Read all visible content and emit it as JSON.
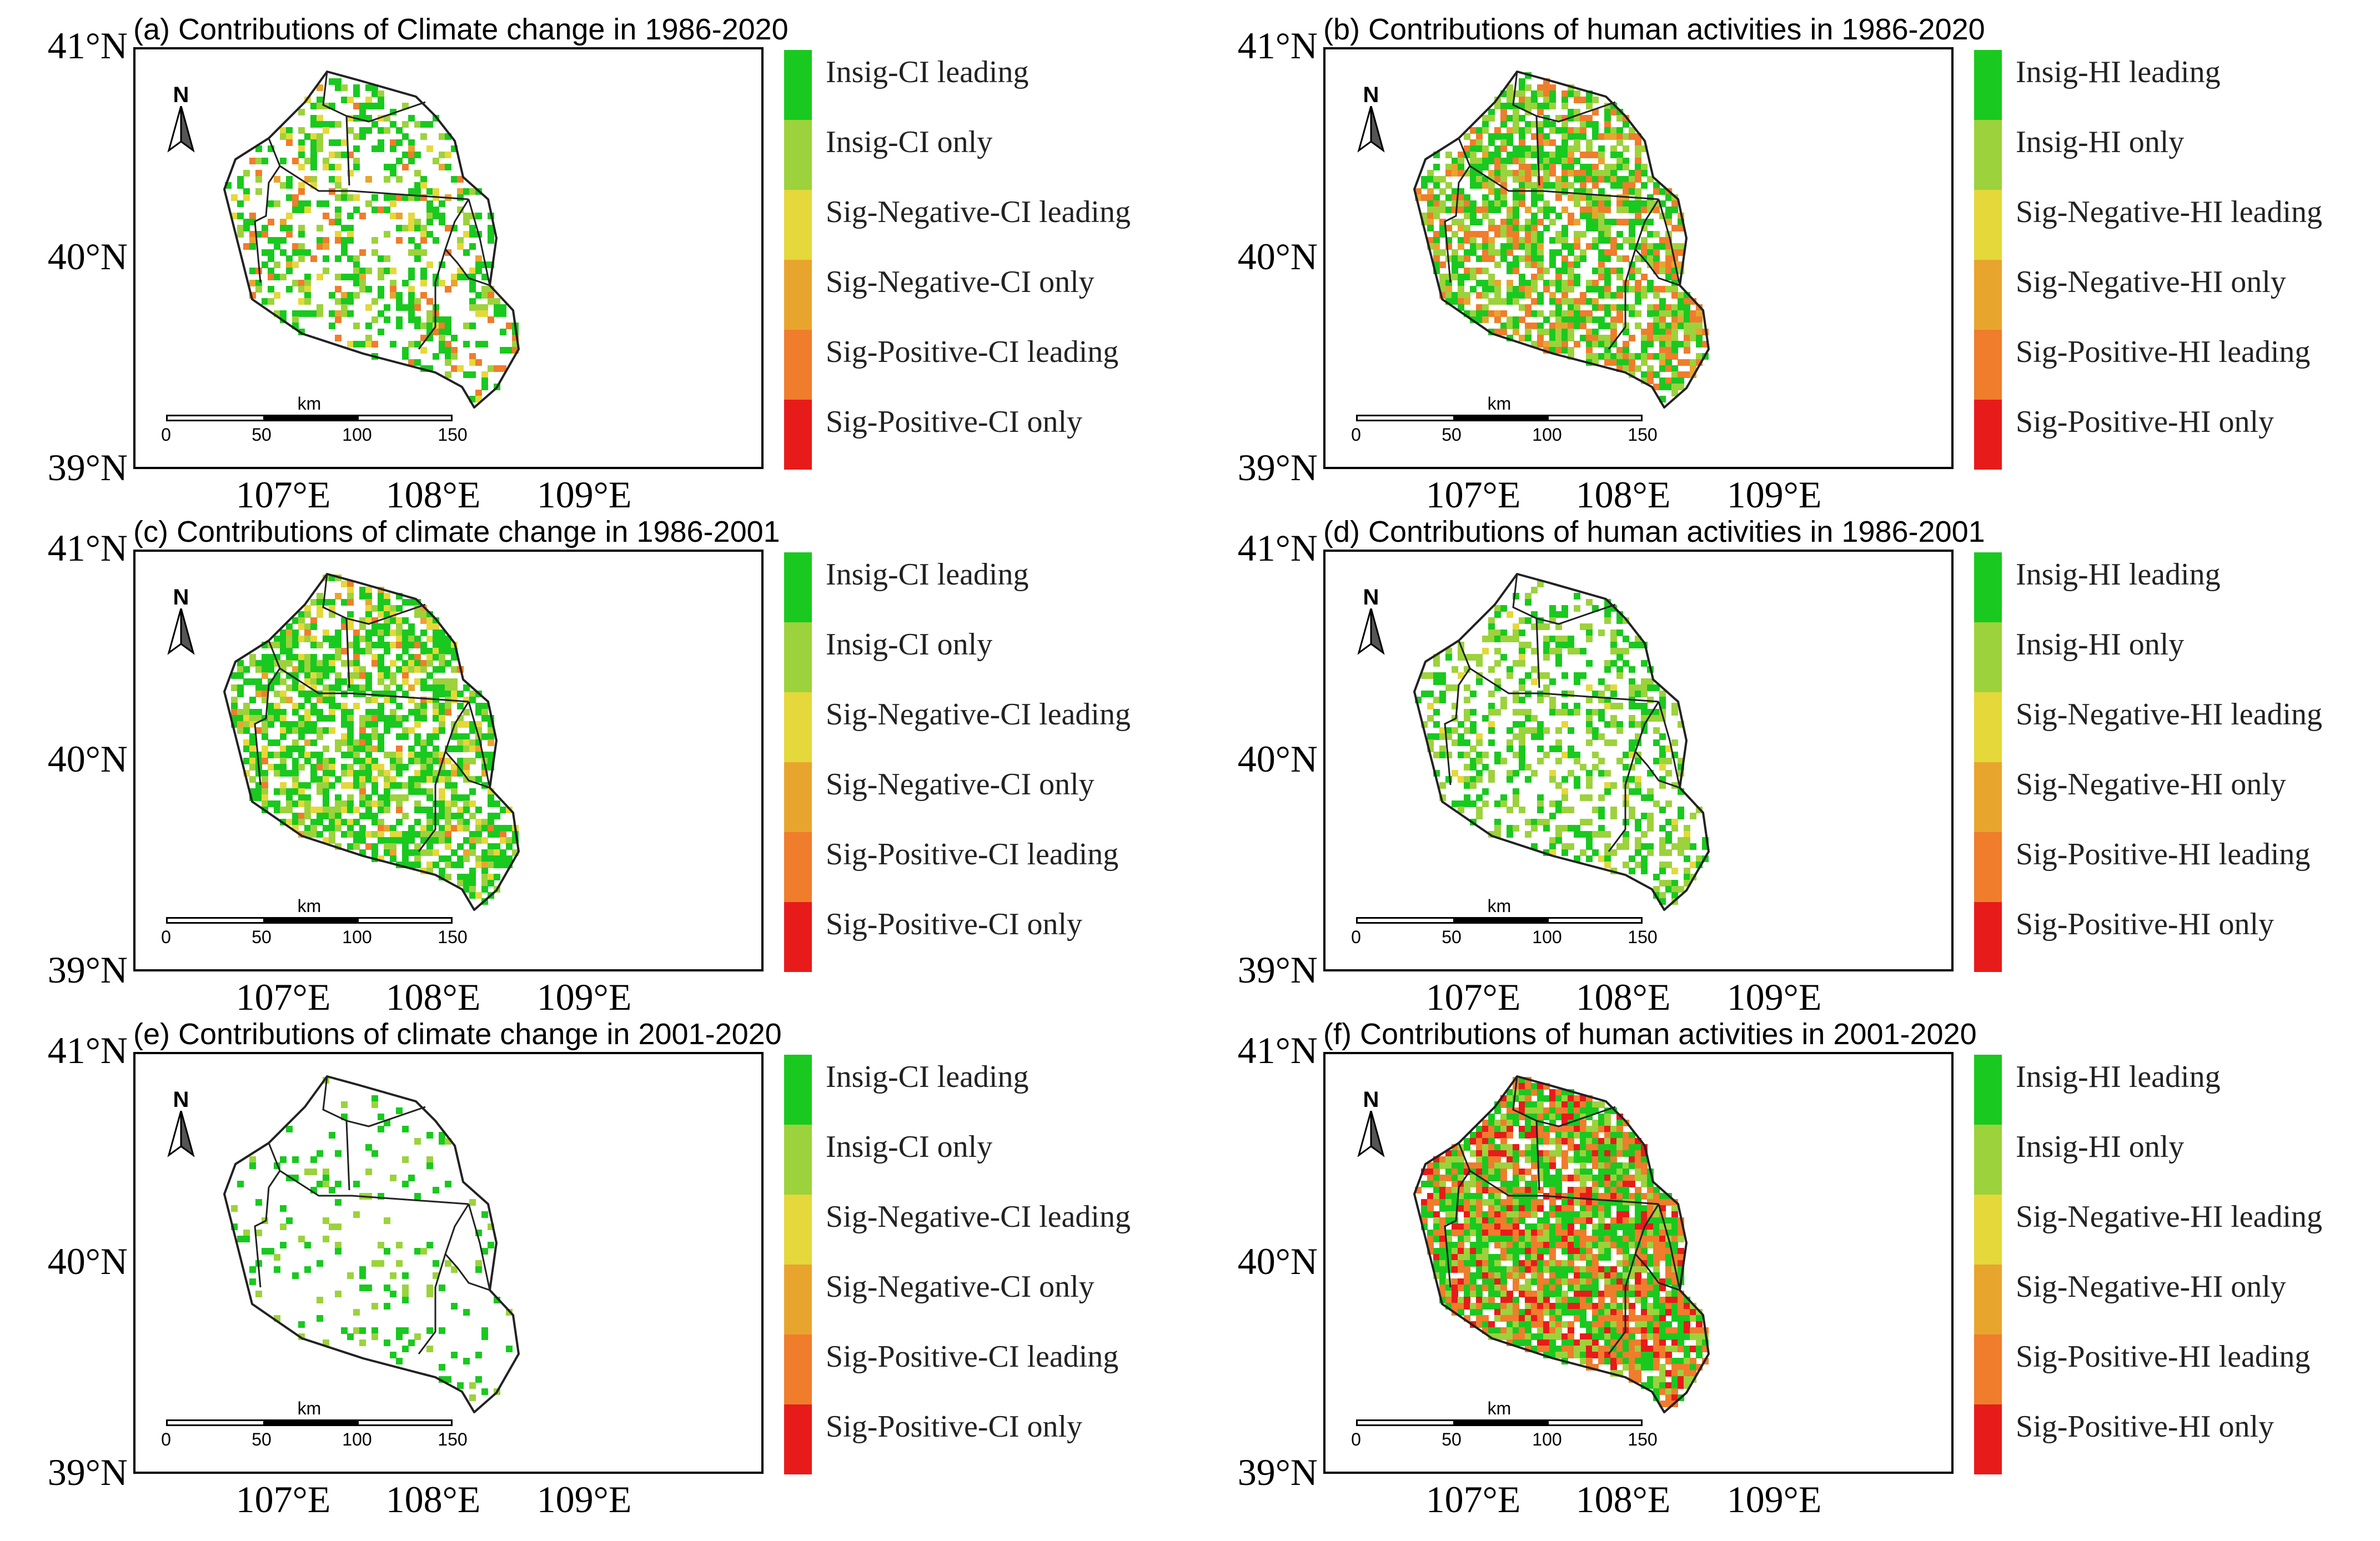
{
  "colors": {
    "insig_leading": "#19c91f",
    "insig_only": "#9cd23c",
    "sig_neg_leading": "#e5d83a",
    "sig_neg_only": "#e8a52e",
    "sig_pos_leading": "#ef7d2c",
    "sig_pos_only": "#e81b1b",
    "boundary": "#222222"
  },
  "axes": {
    "lat_labels": [
      "41°N",
      "40°N",
      "39°N"
    ],
    "lon_labels": [
      "107°E",
      "108°E",
      "109°E"
    ]
  },
  "north_label": "N",
  "scale_bar": {
    "unit": "km",
    "ticks": [
      "0",
      "50",
      "100",
      "150"
    ]
  },
  "legend_ci": [
    "Insig-CI leading",
    "Insig-CI only",
    "Sig-Negative-CI leading",
    "Sig-Negative-CI only",
    "Sig-Positive-CI leading",
    "Sig-Positive-CI only"
  ],
  "legend_hi": [
    "Insig-HI leading",
    "Insig-HI only",
    "Sig-Negative-HI leading",
    "Sig-Negative-HI only",
    "Sig-Positive-HI leading",
    "Sig-Positive-HI only"
  ],
  "panels": [
    {
      "title": "(a) Contributions of Climate change in 1986-2020",
      "legend": "ci",
      "mix": [
        0.55,
        0.2,
        0.1,
        0.03,
        0.12,
        0.0
      ],
      "density": 0.35
    },
    {
      "title": "(b) Contributions of human activities in 1986-2020",
      "legend": "hi",
      "mix": [
        0.38,
        0.3,
        0.0,
        0.07,
        0.25,
        0.0
      ],
      "density": 0.65
    },
    {
      "title": "(c) Contributions of climate change in 1986-2001",
      "legend": "ci",
      "mix": [
        0.55,
        0.25,
        0.15,
        0.02,
        0.03,
        0.0
      ],
      "density": 0.6
    },
    {
      "title": "(d) Contributions of human activities in 1986-2001",
      "legend": "hi",
      "mix": [
        0.45,
        0.5,
        0.05,
        0.0,
        0.0,
        0.0
      ],
      "density": 0.35
    },
    {
      "title": "(e) Contributions of climate change in 2001-2020",
      "legend": "ci",
      "mix": [
        0.6,
        0.4,
        0.0,
        0.0,
        0.0,
        0.0
      ],
      "density": 0.12
    },
    {
      "title": "(f) Contributions of human activities in 2001-2020",
      "legend": "hi",
      "mix": [
        0.35,
        0.2,
        0.0,
        0.0,
        0.3,
        0.15
      ],
      "density": 0.85
    }
  ]
}
